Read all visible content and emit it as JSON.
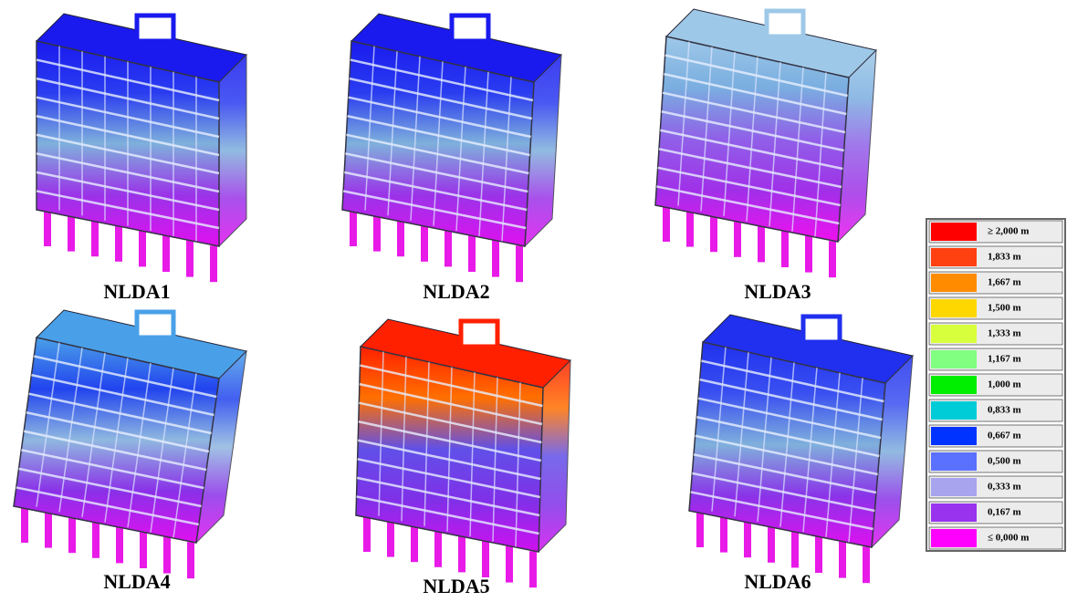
{
  "panels": [
    {
      "label": "NLDA1"
    },
    {
      "label": "NLDA2"
    },
    {
      "label": "NLDA3"
    },
    {
      "label": "NLDA4"
    },
    {
      "label": "NLDA5"
    },
    {
      "label": "NLDA6"
    }
  ],
  "legend": [
    {
      "label": "≥ 2,000 m",
      "color": "#ff0000"
    },
    {
      "label": "1,833 m",
      "color": "#ff4010"
    },
    {
      "label": "1,667 m",
      "color": "#ff8c00"
    },
    {
      "label": "1,500 m",
      "color": "#ffd700"
    },
    {
      "label": "1,333 m",
      "color": "#d8ff3c"
    },
    {
      "label": "1,167 m",
      "color": "#80ff80"
    },
    {
      "label": "1,000 m",
      "color": "#00ee00"
    },
    {
      "label": "0,833 m",
      "color": "#00ccd8"
    },
    {
      "label": "0,667 m",
      "color": "#0033ff"
    },
    {
      "label": "0,500 m",
      "color": "#5a70ff"
    },
    {
      "label": "0,333 m",
      "color": "#a8a4ee"
    },
    {
      "label": "0,167 m",
      "color": "#9933ee"
    },
    {
      "label": "≤ 0,000 m",
      "color": "#ff00ff"
    }
  ]
}
